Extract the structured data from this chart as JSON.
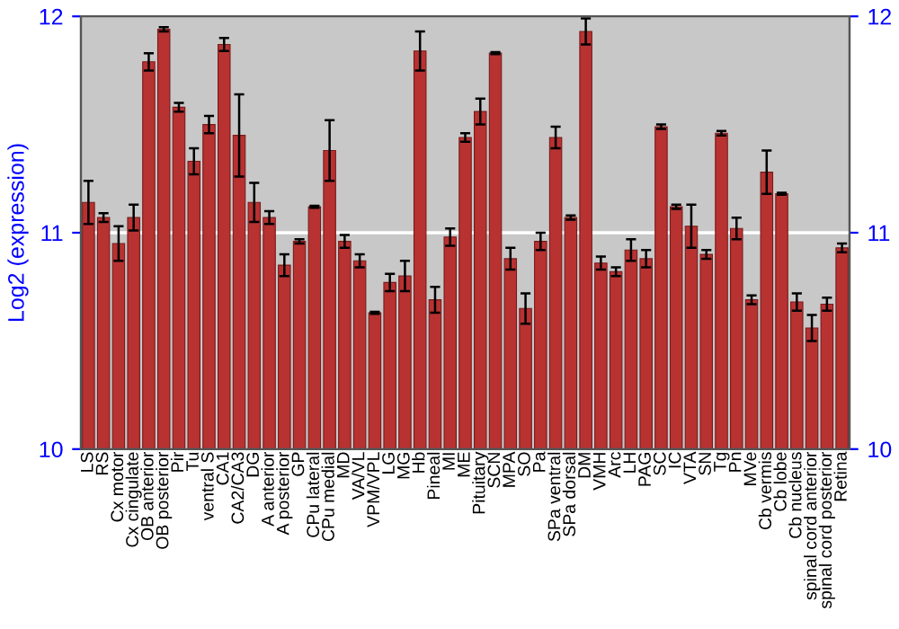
{
  "chart_data": {
    "type": "bar",
    "ylabel": "Log2 (expression)",
    "categories": [
      "LS",
      "RS",
      "Cx motor",
      "Cx cingulate",
      "OB anterior",
      "OB posterior",
      "Pir",
      "Tu",
      "ventral S",
      "CA1",
      "CA2/CA3",
      "DG",
      "A anterior",
      "A posterior",
      "GP",
      "CPu lateral",
      "CPu medial",
      "MD",
      "VA/VL",
      "VPM/VPL",
      "LG",
      "MG",
      "Hb",
      "Pineal",
      "MI",
      "ME",
      "Pituitary",
      "SCN",
      "MPA",
      "SO",
      "Pa",
      "SPa ventral",
      "SPa dorsal",
      "DM",
      "VMH",
      "Arc",
      "LH",
      "PAG",
      "SC",
      "IC",
      "VTA",
      "SN",
      "Tg",
      "Pn",
      "MVe",
      "Cb vermis",
      "Cb lobe",
      "Cb nucleus",
      "spinal cord anterior",
      "spinal cord posterior",
      "Retina"
    ],
    "values": [
      11.14,
      11.07,
      10.95,
      11.07,
      11.79,
      11.94,
      11.58,
      11.33,
      11.5,
      11.87,
      11.45,
      11.14,
      11.07,
      10.85,
      10.96,
      11.12,
      11.38,
      10.96,
      10.87,
      10.63,
      10.77,
      10.8,
      11.84,
      10.69,
      10.98,
      11.44,
      11.56,
      11.83,
      10.88,
      10.65,
      10.96,
      11.44,
      11.07,
      11.93,
      10.86,
      10.82,
      10.92,
      10.88,
      11.49,
      11.12,
      11.03,
      10.9,
      11.46,
      11.02,
      10.69,
      11.28,
      11.18,
      10.68,
      10.56,
      10.67,
      10.93
    ],
    "errors": [
      0.1,
      0.02,
      0.08,
      0.06,
      0.04,
      0.01,
      0.02,
      0.06,
      0.04,
      0.03,
      0.19,
      0.09,
      0.03,
      0.05,
      0.01,
      0.005,
      0.14,
      0.03,
      0.03,
      0.005,
      0.04,
      0.07,
      0.09,
      0.06,
      0.04,
      0.02,
      0.06,
      0.005,
      0.05,
      0.07,
      0.04,
      0.05,
      0.01,
      0.06,
      0.03,
      0.02,
      0.05,
      0.04,
      0.01,
      0.01,
      0.1,
      0.02,
      0.01,
      0.05,
      0.02,
      0.1,
      0.005,
      0.04,
      0.06,
      0.03,
      0.02
    ],
    "color": "#b83232",
    "ylim": [
      10,
      12
    ],
    "yticks": [
      10,
      11,
      12
    ],
    "y2lim": [
      10,
      12
    ],
    "y2ticks": [
      10,
      11,
      12
    ],
    "grid": "y"
  }
}
